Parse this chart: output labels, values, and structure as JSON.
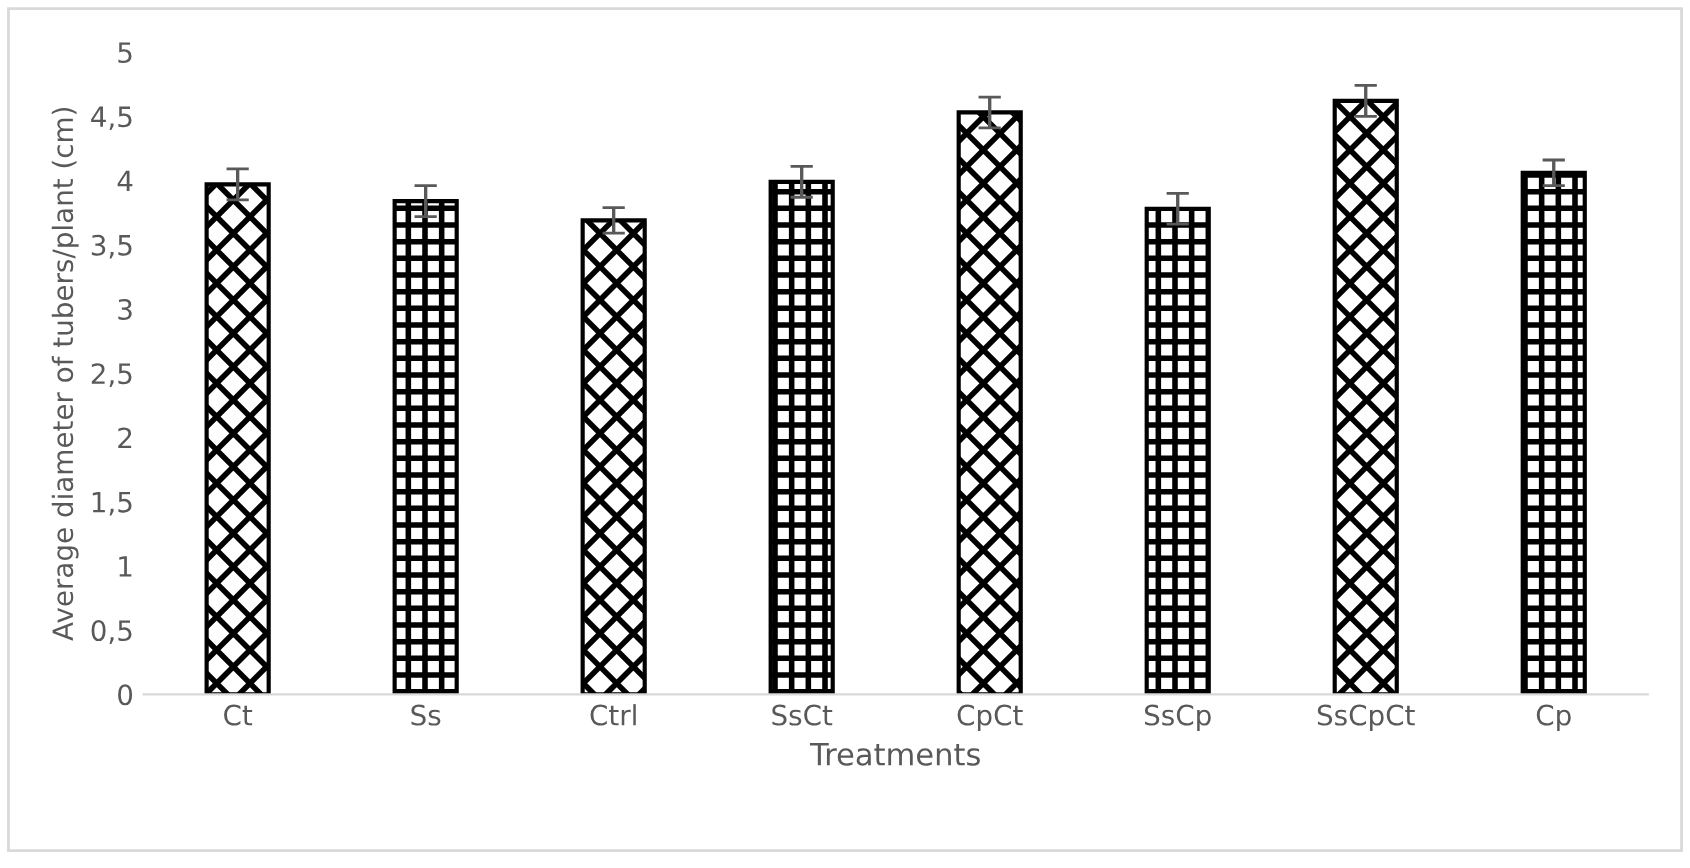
{
  "chart_data": {
    "type": "bar",
    "xlabel": "Treatments",
    "ylabel": "Average diameter of tubers/plant (cm)",
    "categories": [
      "Ct",
      "Ss",
      "Ctrl",
      "SsCt",
      "CpCt",
      "SsCp",
      "SsCpCt",
      "Cp"
    ],
    "values": [
      3.97,
      3.84,
      3.69,
      3.99,
      4.53,
      3.78,
      4.62,
      4.06
    ],
    "errors": [
      0.12,
      0.12,
      0.1,
      0.12,
      0.12,
      0.12,
      0.12,
      0.1
    ],
    "color": "#000000",
    "ylim": [
      0,
      5
    ],
    "yticks": [
      0,
      {
        "value": 0.5,
        "label": "0,5"
      },
      1,
      {
        "value": 1.5,
        "label": "1,5"
      },
      2,
      {
        "value": 2.5,
        "label": "2,5"
      },
      3,
      {
        "value": 3.5,
        "label": "3,5"
      },
      4,
      {
        "value": 4.5,
        "label": "4,5"
      },
      5
    ],
    "grid": false
  }
}
